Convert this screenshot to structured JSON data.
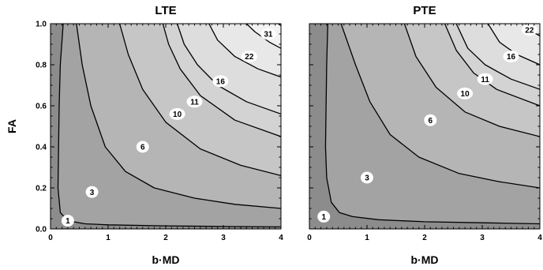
{
  "chart_data": [
    {
      "type": "contour",
      "title": "LTE",
      "xlabel": "b·MD",
      "ylabel": "FA",
      "xlim": [
        0,
        4
      ],
      "ylim": [
        0,
        1
      ],
      "xticks": [
        "0",
        "1",
        "2",
        "3",
        "4"
      ],
      "yticks": [
        "0.0",
        "0.2",
        "0.4",
        "0.6",
        "0.8",
        "1.0"
      ],
      "fill_colors": [
        "#8c8c8c",
        "#a3a3a3",
        "#b5b5b5",
        "#c6c6c6",
        "#d3d3d3",
        "#dddddd",
        "#e8e8e8",
        "#f2f2f2"
      ],
      "contours": [
        {
          "level": "1",
          "points": [
            [
              0.22,
              1.0
            ],
            [
              0.17,
              0.8
            ],
            [
              0.15,
              0.6
            ],
            [
              0.14,
              0.4
            ],
            [
              0.13,
              0.2
            ],
            [
              0.17,
              0.08
            ],
            [
              0.3,
              0.04
            ],
            [
              0.6,
              0.025
            ],
            [
              1.0,
              0.02
            ],
            [
              2.0,
              0.015
            ],
            [
              3.0,
              0.012
            ],
            [
              4.0,
              0.01
            ]
          ],
          "label_at": [
            0.3,
            0.04
          ]
        },
        {
          "level": "3",
          "points": [
            [
              0.45,
              1.0
            ],
            [
              0.55,
              0.8
            ],
            [
              0.7,
              0.6
            ],
            [
              0.95,
              0.4
            ],
            [
              1.3,
              0.28
            ],
            [
              1.8,
              0.2
            ],
            [
              2.5,
              0.15
            ],
            [
              3.2,
              0.12
            ],
            [
              4.0,
              0.1
            ]
          ],
          "label_at": [
            0.72,
            0.18
          ]
        },
        {
          "level": "6",
          "points": [
            [
              1.2,
              1.0
            ],
            [
              1.35,
              0.85
            ],
            [
              1.6,
              0.68
            ],
            [
              2.0,
              0.52
            ],
            [
              2.6,
              0.39
            ],
            [
              3.3,
              0.31
            ],
            [
              4.0,
              0.26
            ]
          ],
          "label_at": [
            1.6,
            0.4
          ]
        },
        {
          "level": "10",
          "points": [
            [
              1.95,
              1.0
            ],
            [
              2.05,
              0.9
            ],
            [
              2.25,
              0.78
            ],
            [
              2.6,
              0.65
            ],
            [
              3.2,
              0.53
            ],
            [
              4.0,
              0.45
            ]
          ],
          "label_at": [
            2.2,
            0.56
          ]
        },
        {
          "level": "11",
          "points": [
            [
              2.2,
              1.0
            ],
            [
              2.32,
              0.9
            ],
            [
              2.55,
              0.8
            ],
            [
              2.9,
              0.7
            ],
            [
              3.4,
              0.62
            ],
            [
              4.0,
              0.56
            ]
          ],
          "label_at": [
            2.5,
            0.62
          ]
        },
        {
          "level": "16",
          "points": [
            [
              2.75,
              1.0
            ],
            [
              2.9,
              0.92
            ],
            [
              3.2,
              0.84
            ],
            [
              3.6,
              0.78
            ],
            [
              4.0,
              0.74
            ]
          ],
          "label_at": [
            2.95,
            0.72
          ]
        },
        {
          "level": "22",
          "points": [
            [
              3.4,
              1.0
            ],
            [
              3.55,
              0.96
            ],
            [
              3.8,
              0.91
            ],
            [
              4.0,
              0.88
            ]
          ],
          "label_at": [
            3.45,
            0.84
          ]
        },
        {
          "level": "31",
          "points": [
            [
              3.95,
              1.0
            ],
            [
              4.0,
              0.99
            ]
          ],
          "label_at": [
            3.78,
            0.95
          ]
        }
      ]
    },
    {
      "type": "contour",
      "title": "PTE",
      "xlabel": "b·MD",
      "ylabel": "",
      "xlim": [
        0,
        4
      ],
      "ylim": [
        0,
        1
      ],
      "xticks": [
        "0",
        "1",
        "2",
        "3",
        "4"
      ],
      "yticks": [],
      "fill_colors": [
        "#8c8c8c",
        "#a3a3a3",
        "#b5b5b5",
        "#c6c6c6",
        "#d3d3d3",
        "#dddddd",
        "#e8e8e8"
      ],
      "contours": [
        {
          "level": "1",
          "points": [
            [
              0.32,
              1.0
            ],
            [
              0.3,
              0.8
            ],
            [
              0.29,
              0.6
            ],
            [
              0.28,
              0.4
            ],
            [
              0.3,
              0.25
            ],
            [
              0.38,
              0.13
            ],
            [
              0.52,
              0.08
            ],
            [
              0.75,
              0.06
            ],
            [
              1.2,
              0.045
            ],
            [
              2.0,
              0.035
            ],
            [
              3.0,
              0.03
            ],
            [
              4.0,
              0.025
            ]
          ],
          "label_at": [
            0.25,
            0.06
          ]
        },
        {
          "level": "3",
          "points": [
            [
              0.55,
              1.0
            ],
            [
              0.8,
              0.8
            ],
            [
              1.05,
              0.62
            ],
            [
              1.4,
              0.46
            ],
            [
              1.9,
              0.35
            ],
            [
              2.6,
              0.27
            ],
            [
              3.3,
              0.23
            ],
            [
              4.0,
              0.2
            ]
          ],
          "label_at": [
            1.0,
            0.25
          ]
        },
        {
          "level": "6",
          "points": [
            [
              1.65,
              1.0
            ],
            [
              1.85,
              0.84
            ],
            [
              2.2,
              0.69
            ],
            [
              2.7,
              0.57
            ],
            [
              3.3,
              0.5
            ],
            [
              4.0,
              0.45
            ]
          ],
          "label_at": [
            2.1,
            0.53
          ]
        },
        {
          "level": "10",
          "points": [
            [
              2.35,
              1.0
            ],
            [
              2.55,
              0.87
            ],
            [
              2.85,
              0.76
            ],
            [
              3.25,
              0.68
            ],
            [
              4.0,
              0.6
            ]
          ],
          "label_at": [
            2.7,
            0.66
          ]
        },
        {
          "level": "11",
          "points": [
            [
              2.55,
              1.0
            ],
            [
              2.75,
              0.88
            ],
            [
              3.05,
              0.8
            ],
            [
              3.5,
              0.73
            ],
            [
              4.0,
              0.68
            ]
          ],
          "label_at": [
            3.05,
            0.73
          ]
        },
        {
          "level": "16",
          "points": [
            [
              3.1,
              1.0
            ],
            [
              3.3,
              0.91
            ],
            [
              3.6,
              0.85
            ],
            [
              4.0,
              0.8
            ]
          ],
          "label_at": [
            3.5,
            0.84
          ]
        },
        {
          "level": "22",
          "points": [
            [
              3.75,
              1.0
            ],
            [
              3.88,
              0.96
            ],
            [
              4.0,
              0.94
            ]
          ],
          "label_at": [
            3.82,
            0.97
          ]
        }
      ]
    }
  ]
}
